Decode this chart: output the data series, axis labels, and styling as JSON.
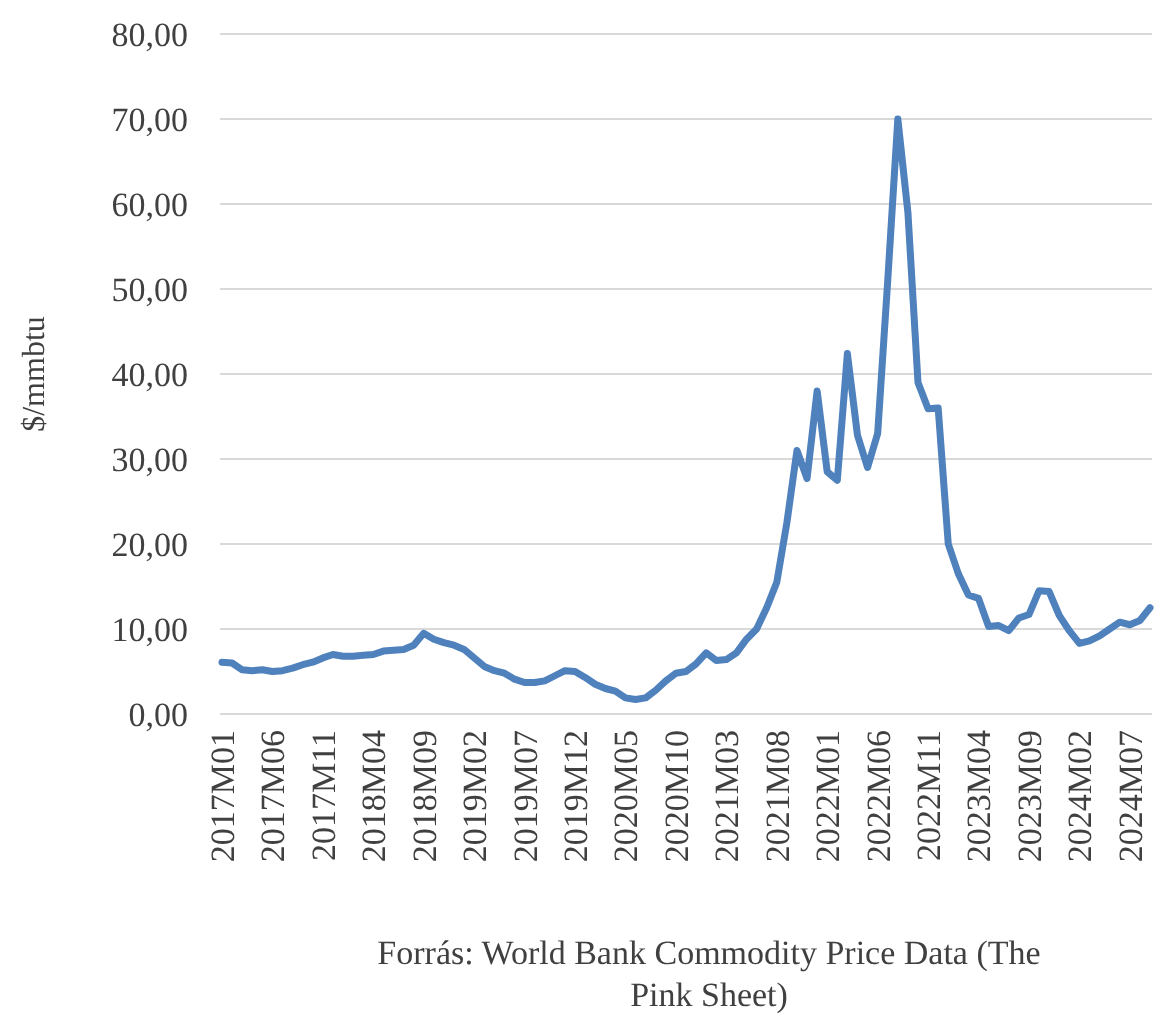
{
  "chart_data": {
    "type": "line",
    "ylabel": "$/mmbtu",
    "annotations": [
      "Forrás: World Bank Commodity Price Data (The Pink Sheet)"
    ],
    "categories": [
      "2017M01",
      null,
      null,
      null,
      null,
      "2017M06",
      null,
      null,
      null,
      null,
      "2017M11",
      null,
      null,
      null,
      null,
      "2018M04",
      null,
      null,
      null,
      null,
      "2018M09",
      null,
      null,
      null,
      null,
      "2019M02",
      null,
      null,
      null,
      null,
      "2019M07",
      null,
      null,
      null,
      null,
      "2019M12",
      null,
      null,
      null,
      null,
      "2020M05",
      null,
      null,
      null,
      null,
      "2020M10",
      null,
      null,
      null,
      null,
      "2021M03",
      null,
      null,
      null,
      null,
      "2021M08",
      null,
      null,
      null,
      null,
      "2022M01",
      null,
      null,
      null,
      null,
      "2022M06",
      null,
      null,
      null,
      null,
      "2022M11",
      null,
      null,
      null,
      null,
      "2023M04",
      null,
      null,
      null,
      null,
      "2023M09",
      null,
      null,
      null,
      null,
      "2024M02",
      null,
      null,
      null,
      null,
      "2024M07",
      null,
      null
    ],
    "series": [
      {
        "color": "#4f81bd",
        "values": [
          6.1,
          6.0,
          5.2,
          5.1,
          5.2,
          5.0,
          5.1,
          5.4,
          5.8,
          6.1,
          6.6,
          7.0,
          6.8,
          6.8,
          6.9,
          7.0,
          7.4,
          7.5,
          7.6,
          8.1,
          9.5,
          8.8,
          8.4,
          8.1,
          7.6,
          6.6,
          5.6,
          5.1,
          4.8,
          4.1,
          3.7,
          3.7,
          3.9,
          4.5,
          5.1,
          5.0,
          4.3,
          3.5,
          3.0,
          2.7,
          1.9,
          1.7,
          1.9,
          2.8,
          3.9,
          4.8,
          5.0,
          5.9,
          7.2,
          6.3,
          6.4,
          7.2,
          8.8,
          10.0,
          12.5,
          15.5,
          22.5,
          31.0,
          27.7,
          38.0,
          28.5,
          27.5,
          42.4,
          32.8,
          29.0,
          33.0,
          51.0,
          70.0,
          59.0,
          39.0,
          35.9,
          36.0,
          20.0,
          16.5,
          14.0,
          13.6,
          10.3,
          10.4,
          9.8,
          11.3,
          11.7,
          14.5,
          14.4,
          11.6,
          9.8,
          8.3,
          8.6,
          9.2,
          10.0,
          10.8,
          10.5,
          11.0,
          12.5
        ]
      }
    ],
    "ylim": [
      0,
      80
    ],
    "yticks": [
      {
        "value": 0,
        "label": "0,00"
      },
      {
        "value": 10,
        "label": "10,00"
      },
      {
        "value": 20,
        "label": "20,00"
      },
      {
        "value": 30,
        "label": "30,00"
      },
      {
        "value": 40,
        "label": "40,00"
      },
      {
        "value": 50,
        "label": "50,00"
      },
      {
        "value": 60,
        "label": "60,00"
      },
      {
        "value": 70,
        "label": "70,00"
      },
      {
        "value": 80,
        "label": "80,00"
      }
    ],
    "grid": "y",
    "marker": "none",
    "line_style": "solid"
  }
}
